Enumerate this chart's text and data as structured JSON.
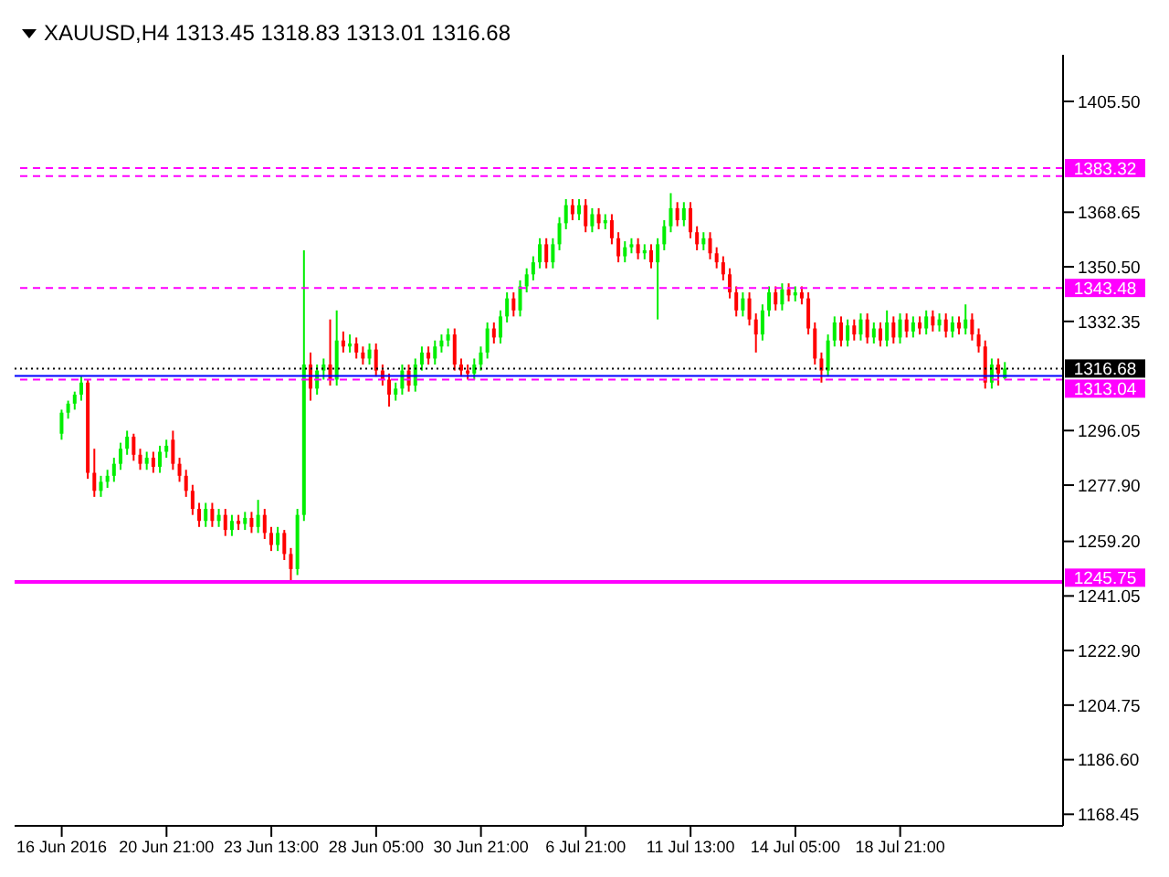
{
  "chart_data": {
    "type": "candlestick",
    "title": "XAUUSD,H4  1313.45 1318.83 1313.01 1316.68",
    "categories": [
      "16 Jun 2016",
      null,
      null,
      null,
      null,
      null,
      null,
      null,
      null,
      null,
      null,
      null,
      null,
      null,
      null,
      null,
      "20 Jun 21:00",
      null,
      null,
      null,
      null,
      null,
      null,
      null,
      null,
      null,
      null,
      null,
      null,
      null,
      null,
      null,
      "23 Jun 13:00",
      null,
      null,
      null,
      null,
      null,
      null,
      null,
      null,
      null,
      null,
      null,
      null,
      null,
      null,
      null,
      "28 Jun 05:00",
      null,
      null,
      null,
      null,
      null,
      null,
      null,
      null,
      null,
      null,
      null,
      null,
      null,
      null,
      null,
      "30 Jun 21:00",
      null,
      null,
      null,
      null,
      null,
      null,
      null,
      null,
      null,
      null,
      null,
      null,
      null,
      null,
      null,
      "6 Jul 21:00",
      null,
      null,
      null,
      null,
      null,
      null,
      null,
      null,
      null,
      null,
      null,
      null,
      null,
      null,
      null,
      "11 Jul 13:00",
      null,
      null,
      null,
      null,
      null,
      null,
      null,
      null,
      null,
      null,
      null,
      null,
      null,
      null,
      null,
      "14 Jul 05:00",
      null,
      null,
      null,
      null,
      null,
      null,
      null,
      null,
      null,
      null,
      null,
      null,
      null,
      null,
      null,
      "18 Jul 21:00",
      null,
      null,
      null,
      null,
      null,
      null,
      null,
      null,
      null,
      null,
      null,
      null,
      null,
      null,
      null,
      null
    ],
    "ohlc": [
      [
        1295,
        1303,
        1293,
        1302
      ],
      [
        1302,
        1306,
        1300,
        1305
      ],
      [
        1305,
        1309,
        1303,
        1308
      ],
      [
        1308,
        1314,
        1306,
        1312
      ],
      [
        1312,
        1313,
        1280,
        1282
      ],
      [
        1282,
        1290,
        1274,
        1276
      ],
      [
        1276,
        1281,
        1274,
        1279
      ],
      [
        1279,
        1283,
        1277,
        1281
      ],
      [
        1281,
        1287,
        1279,
        1285
      ],
      [
        1285,
        1292,
        1283,
        1290
      ],
      [
        1290,
        1296,
        1288,
        1294
      ],
      [
        1294,
        1295,
        1286,
        1288
      ],
      [
        1288,
        1290,
        1283,
        1285
      ],
      [
        1285,
        1289,
        1283,
        1287
      ],
      [
        1287,
        1289,
        1282,
        1284
      ],
      [
        1284,
        1291,
        1282,
        1289
      ],
      [
        1289,
        1293,
        1287,
        1291
      ],
      [
        1293,
        1296,
        1283,
        1285
      ],
      [
        1285,
        1287,
        1279,
        1281
      ],
      [
        1281,
        1283,
        1274,
        1276
      ],
      [
        1276,
        1278,
        1268,
        1270
      ],
      [
        1270,
        1272,
        1264,
        1266
      ],
      [
        1266,
        1272,
        1264,
        1270
      ],
      [
        1270,
        1272,
        1264,
        1266
      ],
      [
        1266,
        1270,
        1264,
        1268
      ],
      [
        1268,
        1270,
        1261,
        1263
      ],
      [
        1263,
        1268,
        1261,
        1266
      ],
      [
        1266,
        1268,
        1263,
        1265
      ],
      [
        1265,
        1269,
        1263,
        1267
      ],
      [
        1267,
        1269,
        1262,
        1264
      ],
      [
        1264,
        1273,
        1262,
        1268
      ],
      [
        1268,
        1270,
        1260,
        1262
      ],
      [
        1262,
        1264,
        1256,
        1258
      ],
      [
        1258,
        1264,
        1256,
        1262
      ],
      [
        1262,
        1263,
        1253,
        1255
      ],
      [
        1255,
        1257,
        1245.75,
        1250
      ],
      [
        1250,
        1270,
        1248,
        1268
      ],
      [
        1268,
        1356,
        1266,
        1318
      ],
      [
        1318,
        1322,
        1306,
        1310
      ],
      [
        1310,
        1318,
        1308,
        1316
      ],
      [
        1316,
        1320,
        1313,
        1318
      ],
      [
        1318,
        1333,
        1311,
        1313
      ],
      [
        1313,
        1336,
        1311,
        1326
      ],
      [
        1326,
        1329,
        1322,
        1324
      ],
      [
        1324,
        1328,
        1322,
        1325
      ],
      [
        1325,
        1327,
        1320,
        1322
      ],
      [
        1322,
        1324,
        1318,
        1320
      ],
      [
        1320,
        1325,
        1318,
        1323
      ],
      [
        1323,
        1325,
        1314,
        1316
      ],
      [
        1316,
        1318,
        1311,
        1313
      ],
      [
        1313,
        1315,
        1304,
        1308
      ],
      [
        1308,
        1312,
        1306,
        1310
      ],
      [
        1310,
        1318,
        1308,
        1316
      ],
      [
        1316,
        1318,
        1309,
        1311
      ],
      [
        1311,
        1320,
        1309,
        1318
      ],
      [
        1318,
        1324,
        1316,
        1322
      ],
      [
        1322,
        1324,
        1318,
        1320
      ],
      [
        1320,
        1326,
        1318,
        1324
      ],
      [
        1324,
        1328,
        1322,
        1326
      ],
      [
        1326,
        1330,
        1324,
        1328
      ],
      [
        1328,
        1330,
        1316,
        1318
      ],
      [
        1318,
        1320,
        1314,
        1316
      ],
      [
        1316,
        1318,
        1313,
        1315
      ],
      [
        1315,
        1320,
        1313,
        1318
      ],
      [
        1318,
        1324,
        1316,
        1322
      ],
      [
        1322,
        1332,
        1320,
        1330
      ],
      [
        1330,
        1332,
        1325,
        1327
      ],
      [
        1327,
        1336,
        1325,
        1334
      ],
      [
        1334,
        1342,
        1332,
        1340
      ],
      [
        1340,
        1342,
        1334,
        1336
      ],
      [
        1336,
        1346,
        1334,
        1344
      ],
      [
        1344,
        1350,
        1342,
        1348
      ],
      [
        1348,
        1354,
        1346,
        1352
      ],
      [
        1352,
        1360,
        1350,
        1358
      ],
      [
        1358,
        1360,
        1350,
        1352
      ],
      [
        1352,
        1360,
        1350,
        1358
      ],
      [
        1358,
        1367,
        1356,
        1365
      ],
      [
        1365,
        1373,
        1363,
        1371
      ],
      [
        1371,
        1373,
        1366,
        1368
      ],
      [
        1368,
        1373,
        1366,
        1371
      ],
      [
        1371,
        1373,
        1362,
        1364
      ],
      [
        1364,
        1370,
        1362,
        1368
      ],
      [
        1368,
        1370,
        1363,
        1365
      ],
      [
        1365,
        1368,
        1363,
        1366
      ],
      [
        1366,
        1368,
        1358,
        1360
      ],
      [
        1360,
        1362,
        1352,
        1354
      ],
      [
        1354,
        1359,
        1352,
        1357
      ],
      [
        1357,
        1360,
        1355,
        1358
      ],
      [
        1358,
        1360,
        1353,
        1355
      ],
      [
        1355,
        1358,
        1353,
        1356
      ],
      [
        1356,
        1358,
        1350,
        1352
      ],
      [
        1352,
        1360,
        1333,
        1358
      ],
      [
        1358,
        1366,
        1356,
        1364
      ],
      [
        1364,
        1375,
        1362,
        1370
      ],
      [
        1370,
        1372,
        1364,
        1366
      ],
      [
        1366,
        1372,
        1364,
        1370
      ],
      [
        1370,
        1372,
        1360,
        1362
      ],
      [
        1362,
        1364,
        1356,
        1358
      ],
      [
        1358,
        1362,
        1356,
        1360
      ],
      [
        1360,
        1362,
        1353,
        1355
      ],
      [
        1355,
        1357,
        1350,
        1352
      ],
      [
        1352,
        1354,
        1346,
        1348
      ],
      [
        1348,
        1350,
        1340,
        1342
      ],
      [
        1342,
        1344,
        1334,
        1336
      ],
      [
        1336,
        1342,
        1334,
        1340
      ],
      [
        1340,
        1342,
        1331,
        1333
      ],
      [
        1333,
        1335,
        1322,
        1328
      ],
      [
        1328,
        1338,
        1326,
        1336
      ],
      [
        1336,
        1344,
        1334,
        1342
      ],
      [
        1342,
        1344,
        1336,
        1338
      ],
      [
        1338,
        1345,
        1336,
        1343
      ],
      [
        1343,
        1345,
        1339,
        1341
      ],
      [
        1341,
        1344,
        1339,
        1342
      ],
      [
        1342,
        1344,
        1338,
        1340
      ],
      [
        1340,
        1342,
        1328,
        1330
      ],
      [
        1330,
        1332,
        1318,
        1320
      ],
      [
        1320,
        1322,
        1312,
        1316
      ],
      [
        1316,
        1328,
        1314,
        1326
      ],
      [
        1326,
        1334,
        1324,
        1332
      ],
      [
        1332,
        1334,
        1324,
        1326
      ],
      [
        1326,
        1333,
        1324,
        1331
      ],
      [
        1331,
        1333,
        1326,
        1328
      ],
      [
        1328,
        1335,
        1326,
        1333
      ],
      [
        1333,
        1335,
        1325,
        1327
      ],
      [
        1327,
        1332,
        1325,
        1330
      ],
      [
        1330,
        1332,
        1324,
        1326
      ],
      [
        1326,
        1336,
        1324,
        1332
      ],
      [
        1332,
        1334,
        1325,
        1327
      ],
      [
        1327,
        1335,
        1325,
        1333
      ],
      [
        1333,
        1335,
        1327,
        1329
      ],
      [
        1329,
        1334,
        1327,
        1332
      ],
      [
        1332,
        1334,
        1328,
        1330
      ],
      [
        1330,
        1336,
        1328,
        1334
      ],
      [
        1334,
        1336,
        1329,
        1331
      ],
      [
        1331,
        1335,
        1329,
        1333
      ],
      [
        1333,
        1335,
        1327,
        1329
      ],
      [
        1329,
        1334,
        1327,
        1332
      ],
      [
        1332,
        1334,
        1328,
        1330
      ],
      [
        1330,
        1338,
        1328,
        1333
      ],
      [
        1333,
        1335,
        1326,
        1328
      ],
      [
        1328,
        1330,
        1322,
        1324
      ],
      [
        1324,
        1326,
        1310,
        1312
      ],
      [
        1312,
        1320,
        1310,
        1318
      ],
      [
        1318,
        1320,
        1311,
        1315
      ],
      [
        1313.45,
        1318.83,
        1313.01,
        1316.68
      ]
    ],
    "colors": [
      "#00ee00",
      "#00ee00",
      "#00ee00",
      "#00ee00",
      "#ff0000",
      "#ff0000",
      "#00ee00",
      "#00ee00",
      "#00ee00",
      "#00ee00",
      "#00ee00",
      "#ff0000",
      "#ff0000",
      "#00ee00",
      "#ff0000",
      "#00ee00",
      "#00ee00",
      "#ff0000",
      "#ff0000",
      "#ff0000",
      "#ff0000",
      "#ff0000",
      "#00ee00",
      "#ff0000",
      "#00ee00",
      "#ff0000",
      "#00ee00",
      "#ff0000",
      "#00ee00",
      "#ff0000",
      "#00ee00",
      "#ff0000",
      "#ff0000",
      "#00ee00",
      "#ff0000",
      "#ff0000",
      "#00ee00",
      "#00ee00",
      "#ff0000",
      "#00ee00",
      "#00ee00",
      "#ff0000",
      "#00ee00",
      "#ff0000",
      "#00ee00",
      "#ff0000",
      "#ff0000",
      "#00ee00",
      "#ff0000",
      "#ff0000",
      "#ff0000",
      "#00ee00",
      "#00ee00",
      "#ff0000",
      "#00ee00",
      "#00ee00",
      "#ff0000",
      "#00ee00",
      "#00ee00",
      "#00ee00",
      "#ff0000",
      "#ff0000",
      "#ff0000",
      "#00ee00",
      "#00ee00",
      "#00ee00",
      "#ff0000",
      "#00ee00",
      "#00ee00",
      "#ff0000",
      "#00ee00",
      "#00ee00",
      "#00ee00",
      "#00ee00",
      "#ff0000",
      "#00ee00",
      "#00ee00",
      "#00ee00",
      "#ff0000",
      "#00ee00",
      "#ff0000",
      "#00ee00",
      "#ff0000",
      "#00ee00",
      "#ff0000",
      "#ff0000",
      "#00ee00",
      "#00ee00",
      "#ff0000",
      "#00ee00",
      "#ff0000",
      "#00ee00",
      "#00ee00",
      "#00ee00",
      "#ff0000",
      "#00ee00",
      "#ff0000",
      "#ff0000",
      "#00ee00",
      "#ff0000",
      "#ff0000",
      "#ff0000",
      "#ff0000",
      "#ff0000",
      "#00ee00",
      "#ff0000",
      "#ff0000",
      "#00ee00",
      "#00ee00",
      "#ff0000",
      "#00ee00",
      "#ff0000",
      "#00ee00",
      "#ff0000",
      "#ff0000",
      "#ff0000",
      "#ff0000",
      "#00ee00",
      "#00ee00",
      "#ff0000",
      "#00ee00",
      "#ff0000",
      "#00ee00",
      "#ff0000",
      "#00ee00",
      "#ff0000",
      "#00ee00",
      "#ff0000",
      "#00ee00",
      "#ff0000",
      "#00ee00",
      "#ff0000",
      "#00ee00",
      "#ff0000",
      "#00ee00",
      "#ff0000",
      "#00ee00",
      "#ff0000",
      "#00ee00",
      "#ff0000",
      "#ff0000",
      "#ff0000",
      "#00ee00",
      "#ff0000",
      "#00ee00"
    ],
    "ylim": [
      1164.6,
      1421
    ],
    "yticks": [
      {
        "value": 1405.5,
        "label": "1405.50"
      },
      1368.65,
      {
        "value": 1350.5,
        "label": "1350.50"
      },
      1332.35,
      1296.05,
      {
        "value": 1277.9,
        "label": "1277.90"
      },
      {
        "value": 1259.2,
        "label": "1259.20"
      },
      1241.05,
      {
        "value": 1222.9,
        "label": "1222.90"
      },
      1204.75,
      {
        "value": 1186.6,
        "label": "1186.60"
      },
      1168.45
    ],
    "ref_lines": [
      {
        "axis": "y",
        "value": 1383.32,
        "label": "1383.32",
        "color": "#ff00ff",
        "line_style": "dashed"
      },
      {
        "axis": "y",
        "value": 1380.67,
        "color": "#ff00ff",
        "line_style": "dashed"
      },
      {
        "axis": "y",
        "value": 1343.48,
        "label": "1343.48",
        "color": "#ff00ff",
        "line_style": "dashed"
      },
      {
        "axis": "y",
        "value": 1316.68,
        "label": "1316.68",
        "color": "#000000",
        "line_style": "dotted"
      },
      {
        "axis": "y",
        "value": 1314.2,
        "color": "#0000ff",
        "line_style": "solid"
      },
      {
        "axis": "y",
        "value": 1313.04,
        "label": "1313.04",
        "color": "#ff00ff",
        "line_style": "dashed"
      },
      {
        "axis": "y",
        "value": 1245.75,
        "label": "1245.75",
        "color": "#ff00ff",
        "line_style": "solid"
      }
    ],
    "grid": false
  }
}
